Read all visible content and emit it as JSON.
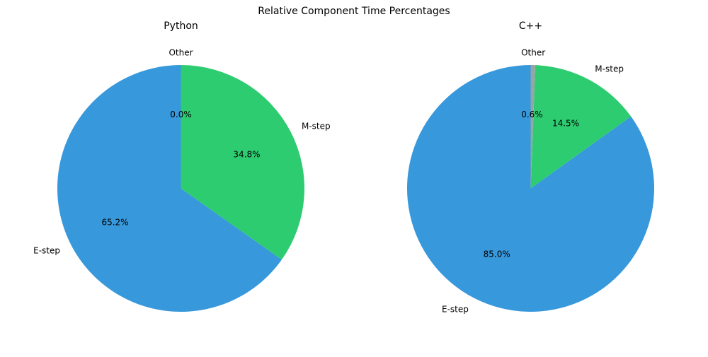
{
  "figure": {
    "suptitle": "Relative Component Time Percentages"
  },
  "chart_data": [
    {
      "type": "pie",
      "title": "Python",
      "categories": [
        "E-step",
        "M-step",
        "Other"
      ],
      "values": [
        65.2,
        34.8,
        0.0
      ],
      "labels": [
        "65.2%",
        "34.8%",
        "0.0%"
      ],
      "colors": [
        "#3798db",
        "#2ecc71",
        "#95a5a6"
      ],
      "start_angle_deg": 90,
      "direction": "counterclockwise"
    },
    {
      "type": "pie",
      "title": "C++",
      "categories": [
        "E-step",
        "M-step",
        "Other"
      ],
      "values": [
        85.0,
        14.5,
        0.6
      ],
      "labels": [
        "85.0%",
        "14.5%",
        "0.6%"
      ],
      "colors": [
        "#3798db",
        "#2ecc71",
        "#95a5a6"
      ],
      "start_angle_deg": 90,
      "direction": "counterclockwise"
    }
  ]
}
